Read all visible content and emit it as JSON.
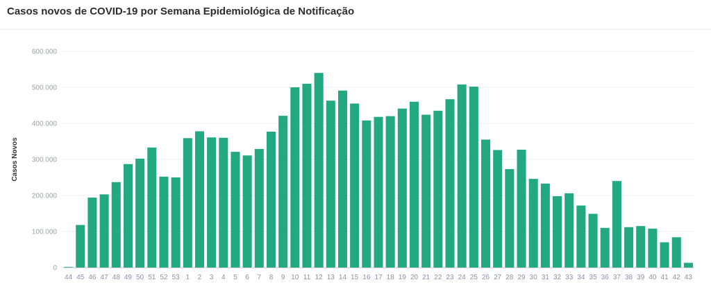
{
  "chart_data": {
    "type": "bar",
    "title": "Casos novos de COVID-19 por Semana Epidemiológica de Notificação",
    "xlabel": "",
    "ylabel": "Casos Novos",
    "ylim": [
      0,
      600000
    ],
    "y_ticks": [
      0,
      100000,
      200000,
      300000,
      400000,
      500000,
      600000
    ],
    "y_tick_labels": [
      "0",
      "100.000",
      "200.000",
      "300.000",
      "400.000",
      "500.000",
      "600.000"
    ],
    "grid": "horizontal",
    "bar_color": "#23a982",
    "categories": [
      "44",
      "45",
      "46",
      "47",
      "48",
      "49",
      "50",
      "51",
      "52",
      "53",
      "1",
      "2",
      "3",
      "4",
      "5",
      "6",
      "7",
      "8",
      "9",
      "10",
      "11",
      "12",
      "13",
      "14",
      "15",
      "16",
      "17",
      "18",
      "19",
      "20",
      "21",
      "22",
      "23",
      "24",
      "25",
      "26",
      "27",
      "28",
      "29",
      "30",
      "31",
      "32",
      "33",
      "34",
      "35",
      "36",
      "37",
      "38",
      "39",
      "40",
      "41",
      "42",
      "43"
    ],
    "values": [
      1500,
      118000,
      194000,
      203000,
      237000,
      287000,
      302000,
      333000,
      252000,
      250000,
      359000,
      378000,
      361000,
      360000,
      321000,
      311000,
      329000,
      377000,
      421000,
      500000,
      510000,
      540000,
      463000,
      491000,
      455000,
      408000,
      418000,
      420000,
      441000,
      460000,
      424000,
      435000,
      467000,
      508000,
      502000,
      355000,
      326000,
      273000,
      327000,
      246000,
      233000,
      198000,
      206000,
      172000,
      149000,
      110000,
      240000,
      112000,
      115000,
      108000,
      70000,
      84000,
      13000
    ]
  }
}
